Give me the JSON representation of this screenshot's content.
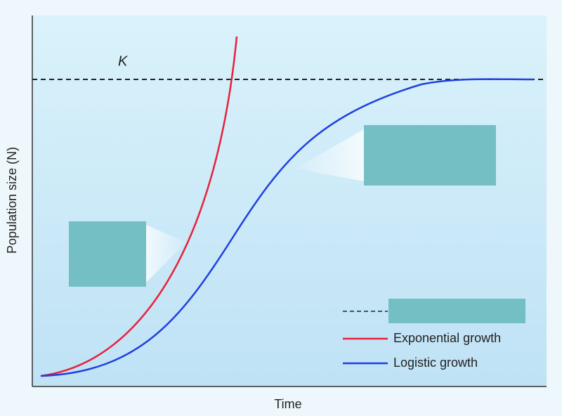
{
  "k_label": "K",
  "x_label": "Time",
  "y_label": "Population size (N)",
  "legend": [
    "Exponential growth",
    "Logistic growth"
  ]
}
